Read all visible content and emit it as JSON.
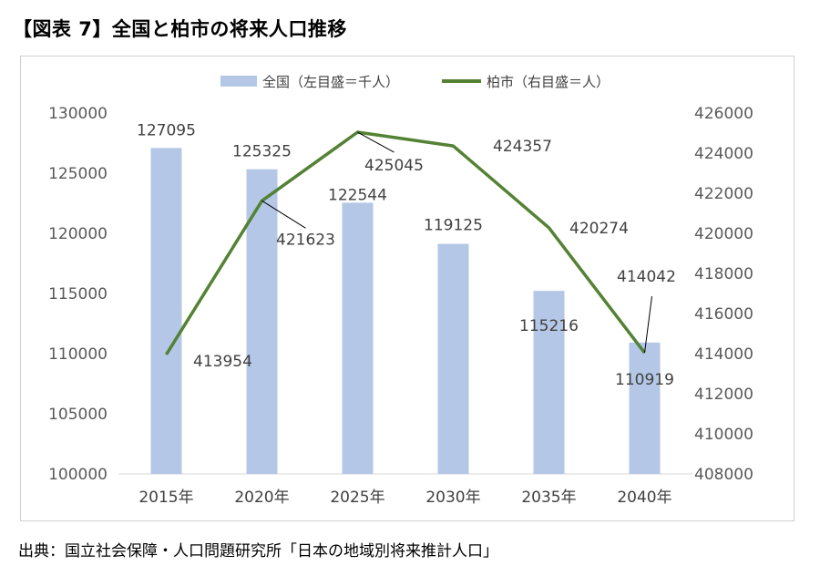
{
  "header": {
    "figure_title": "【図表 7】全国と柏市の将来人口推移"
  },
  "footer": {
    "source": "出典：国立社会保障・人口問題研究所「日本の地域別将来推計人口」"
  },
  "chart_data": {
    "type": "bar+line",
    "categories": [
      "2015年",
      "2020年",
      "2025年",
      "2030年",
      "2035年",
      "2040年"
    ],
    "series": [
      {
        "name": "全国（左目盛＝千人）",
        "type": "bar",
        "axis": "left",
        "color": "#b4c7e7",
        "values": [
          127095,
          125325,
          122544,
          119125,
          115216,
          110919
        ],
        "labels": [
          "127095",
          "125325",
          "122544",
          "119125",
          "115216",
          "110919"
        ]
      },
      {
        "name": "柏市（右目盛＝人）",
        "type": "line",
        "axis": "right",
        "color": "#548235",
        "values": [
          413954,
          421623,
          425045,
          424357,
          420274,
          414042
        ],
        "labels": [
          "413954",
          "421623",
          "425045",
          "424357",
          "420274",
          "414042"
        ]
      }
    ],
    "y_left": {
      "min": 100000,
      "max": 130000,
      "step": 5000,
      "ticks": [
        "100000",
        "105000",
        "110000",
        "115000",
        "120000",
        "125000",
        "130000"
      ]
    },
    "y_right": {
      "min": 408000,
      "max": 426000,
      "step": 2000,
      "ticks": [
        "408000",
        "410000",
        "412000",
        "414000",
        "416000",
        "418000",
        "420000",
        "422000",
        "424000",
        "426000"
      ]
    },
    "grid": false,
    "legend_position": "top"
  }
}
